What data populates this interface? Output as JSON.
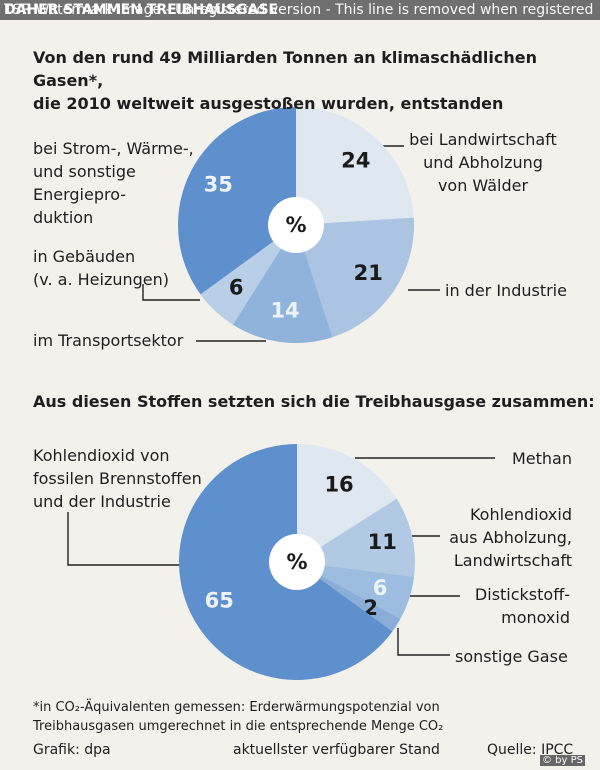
{
  "watermark": "TSR Watermark Image - Unregistered version - This line is removed when registered",
  "header": "DAHER STAMMEN TREIBHAUSGASE",
  "chart_data": [
    {
      "type": "pie",
      "title": "Von den rund 49 Milliarden Tonnen an klimaschädlichen Gasen*,\ndie 2010 weltweit ausgestoßen wurden, entstanden",
      "center_label": "%",
      "categories": [
        "bei Landwirtschaft\nund Abholzung\nvon Wälder",
        "in der Industrie",
        "im Transportsektor",
        "in Gebäuden\n(v. a. Heizungen)",
        "bei Strom-, Wärme-,\nund sonstige\nEnergiepro-\nduktion"
      ],
      "values": [
        24,
        21,
        14,
        6,
        35
      ],
      "colors": [
        "#dfe7f1",
        "#aac4e1",
        "#8fb3da",
        "#b9cfe8",
        "#5d90cd"
      ],
      "value_colors": [
        "#1a1a1a",
        "#1a1a1a",
        "#eef3f9",
        "#1a1a1a",
        "#eef3f9"
      ]
    },
    {
      "type": "pie",
      "title": "Aus diesen Stoffen setzten sich die Treibhausgase zusammen:",
      "center_label": "%",
      "categories": [
        "Methan",
        "Kohlendioxid\naus Abholzung,\nLandwirtschaft",
        "Distickstoff-\nmonoxid",
        "sonstige Gase",
        "Kohlendioxid von\nfossilen Brennstoffen\nund der Industrie"
      ],
      "values": [
        16,
        11,
        6,
        2,
        65
      ],
      "colors": [
        "#dfe7f1",
        "#b2c9e3",
        "#9dbde0",
        "#8aaed8",
        "#5d90cd"
      ],
      "value_colors": [
        "#1a1a1a",
        "#1a1a1a",
        "#eef3f9",
        "#1a1a1a",
        "#eef3f9"
      ]
    }
  ],
  "footnote": "*in CO₂-Äquivalenten gemessen: Erderwärmungspotenzial von\nTreibhausgasen umgerechnet in die entsprechende Menge CO₂",
  "footer": {
    "credit": "Grafik: dpa",
    "note": "aktuellster verfügbarer Stand",
    "source": "Quelle: IPCC",
    "copyright": "© by PS"
  }
}
